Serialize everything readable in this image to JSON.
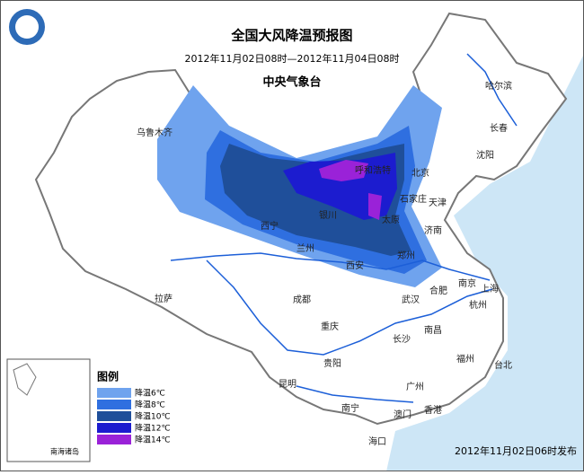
{
  "header": {
    "title": "全国大风降温预报图",
    "period": "2012年11月02日08时—2012年11月04日08时",
    "agency": "中央气象台"
  },
  "cities": [
    "乌鲁木齐",
    "哈尔滨",
    "长春",
    "沈阳",
    "呼和浩特",
    "北京",
    "天津",
    "石家庄",
    "银川",
    "太原",
    "西宁",
    "兰州",
    "济南",
    "郑州",
    "西安",
    "拉萨",
    "成都",
    "武汉",
    "合肥",
    "南京",
    "上海",
    "杭州",
    "重庆",
    "长沙",
    "南昌",
    "贵阳",
    "福州",
    "昆明",
    "台北",
    "广州",
    "南宁",
    "澳门",
    "香港",
    "海口"
  ],
  "legend": {
    "title": "图例",
    "items": [
      {
        "label": "降温6℃",
        "color": "#6fa3ee"
      },
      {
        "label": "降温8℃",
        "color": "#2f6fe0"
      },
      {
        "label": "降温10℃",
        "color": "#1f4f9a"
      },
      {
        "label": "降温12℃",
        "color": "#1c1ccf"
      },
      {
        "label": "降温14℃",
        "color": "#9a22d8"
      }
    ]
  },
  "inset": {
    "label": "南海诸岛"
  },
  "footer": {
    "release": "2012年11月02日06时发布"
  }
}
